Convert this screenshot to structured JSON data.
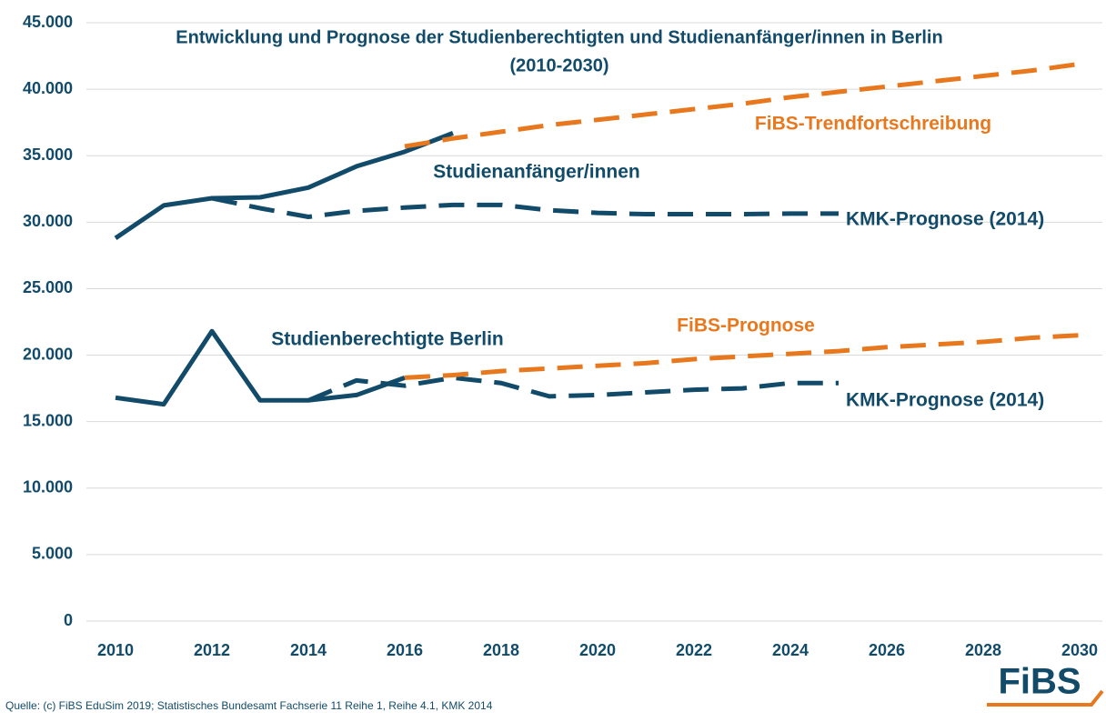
{
  "chart_data": {
    "type": "line",
    "title": "Entwicklung und Prognose der Studienberechtigten und Studienanfänger/innen in Berlin",
    "subtitle": "(2010-2030)",
    "x": [
      2010,
      2011,
      2012,
      2013,
      2014,
      2015,
      2016,
      2017,
      2018,
      2019,
      2020,
      2021,
      2022,
      2023,
      2024,
      2025,
      2026,
      2027,
      2028,
      2029,
      2030
    ],
    "xlim": [
      2010,
      2030
    ],
    "xticks": [
      2010,
      2012,
      2014,
      2016,
      2018,
      2020,
      2022,
      2024,
      2026,
      2028,
      2030
    ],
    "ylim": [
      0,
      45000
    ],
    "yticks": [
      0,
      {
        "value": 5000,
        "label": "5.000"
      },
      {
        "value": 10000,
        "label": "10.000"
      },
      {
        "value": 15000,
        "label": "15.000"
      },
      {
        "value": 20000,
        "label": "20.000"
      },
      {
        "value": 25000,
        "label": "25.000"
      },
      {
        "value": 30000,
        "label": "30.000"
      },
      {
        "value": 35000,
        "label": "35.000"
      },
      {
        "value": 40000,
        "label": "40.000"
      },
      {
        "value": 45000,
        "label": "45.000"
      }
    ],
    "grid": true,
    "series": [
      {
        "name": "Studienanfänger/innen",
        "color": "#124b6a",
        "dashed": false,
        "values": [
          28800,
          31260,
          31800,
          31870,
          32600,
          34200,
          35300,
          36700,
          null,
          null,
          null,
          null,
          null,
          null,
          null,
          null,
          null,
          null,
          null,
          null,
          null
        ]
      },
      {
        "name": "KMK-Prognose (2014)",
        "color": "#124b6a",
        "dashed": true,
        "values": [
          null,
          null,
          31800,
          31050,
          30400,
          30850,
          31100,
          31300,
          31300,
          30900,
          30700,
          30600,
          30600,
          30600,
          30650,
          30650,
          null,
          null,
          null,
          null,
          null
        ]
      },
      {
        "name": "FiBS-Trendfortschreibung",
        "color": "#e8781e",
        "dashed": true,
        "values": [
          null,
          null,
          null,
          null,
          null,
          null,
          35700,
          36300,
          36800,
          37300,
          37700,
          38100,
          38500,
          38900,
          39400,
          39800,
          40200,
          40600,
          41000,
          41400,
          41900
        ]
      },
      {
        "name": "Studienberechtigte Berlin",
        "color": "#124b6a",
        "dashed": false,
        "values": [
          16800,
          16300,
          21800,
          16600,
          16600,
          17000,
          18300,
          null,
          null,
          null,
          null,
          null,
          null,
          null,
          null,
          null,
          null,
          null,
          null,
          null,
          null
        ]
      },
      {
        "name": "KMK-Prognose (2014)",
        "color": "#124b6a",
        "dashed": true,
        "values": [
          null,
          null,
          null,
          null,
          16600,
          18100,
          17700,
          18300,
          17900,
          16900,
          17000,
          17200,
          17400,
          17500,
          17900,
          17900,
          null,
          null,
          null,
          null,
          null
        ]
      },
      {
        "name": "FiBS-Prognose",
        "color": "#e8781e",
        "dashed": true,
        "values": [
          null,
          null,
          null,
          null,
          null,
          null,
          18300,
          18500,
          18800,
          19000,
          19200,
          19400,
          19700,
          19900,
          20100,
          20300,
          20600,
          20800,
          21000,
          21300,
          21500
        ]
      }
    ],
    "source": "Quelle: (c) FiBS EduSim 2019; Statistisches Bundesamt Fachserie 11 Reihe 1, Reihe 4.1, KMK 2014",
    "logo": "FiBS"
  }
}
